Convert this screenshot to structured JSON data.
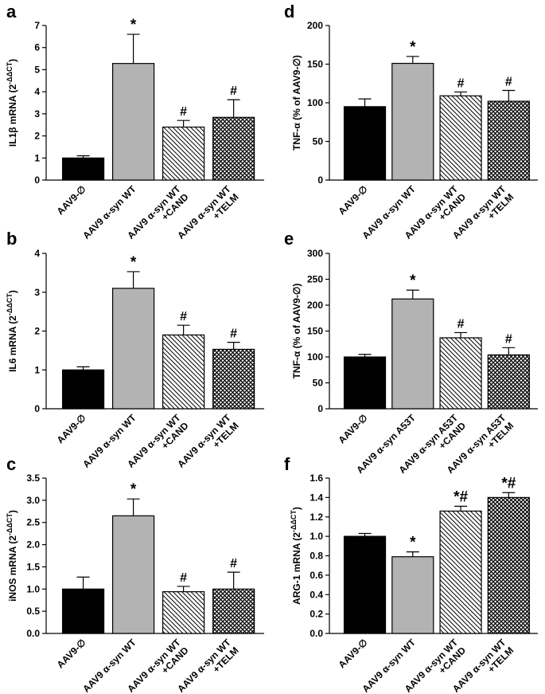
{
  "colors": {
    "black": "#000000",
    "gray": "#b3b3b3",
    "hatch_bg": "#ffffff",
    "cross_bg": "#ffffff"
  },
  "chart_data": [
    {
      "type": "bar",
      "panel": "a",
      "ylabel": "IL1β mRNA (2",
      "ylabel_sup": "-ΔΔCT",
      "ylabel_end": ")",
      "ylim": [
        0,
        7
      ],
      "yticks": [
        "0",
        "1",
        "2",
        "3",
        "4",
        "5",
        "6",
        "7"
      ],
      "categories": [
        [
          "AAV9-∅"
        ],
        [
          "AAV9 α-syn WT"
        ],
        [
          "AAV9 α-syn WT",
          "+CAND"
        ],
        [
          "AAV9 α-syn WT",
          "+TELM"
        ]
      ],
      "values": [
        1.0,
        5.28,
        2.4,
        2.84
      ],
      "errors": [
        0.1,
        1.32,
        0.3,
        0.8
      ],
      "fills": [
        "black",
        "gray",
        "hatch",
        "cross"
      ],
      "annotations": [
        "",
        "*",
        "#",
        "#"
      ]
    },
    {
      "type": "bar",
      "panel": "b",
      "ylabel": "IL6 mRNA (2",
      "ylabel_sup": "-ΔΔCT",
      "ylabel_end": ")",
      "ylim": [
        0,
        4
      ],
      "yticks": [
        "0",
        "1",
        "2",
        "3",
        "4"
      ],
      "categories": [
        [
          "AAV9-∅"
        ],
        [
          "AAV9 α-syn WT"
        ],
        [
          "AAV9 α-syn WT",
          "+CAND"
        ],
        [
          "AAV9 α-syn WT",
          "+TELM"
        ]
      ],
      "values": [
        1.0,
        3.1,
        1.9,
        1.53
      ],
      "errors": [
        0.08,
        0.43,
        0.25,
        0.18
      ],
      "fills": [
        "black",
        "gray",
        "hatch",
        "cross"
      ],
      "annotations": [
        "",
        "*",
        "#",
        "#"
      ]
    },
    {
      "type": "bar",
      "panel": "c",
      "ylabel": "iNOS mRNA (2",
      "ylabel_sup": "-ΔΔCT",
      "ylabel_end": ")",
      "ylim": [
        0,
        3.5
      ],
      "yticks": [
        "0.0",
        "0.5",
        "1.0",
        "1.5",
        "2.0",
        "2.5",
        "3.0",
        "3.5"
      ],
      "categories": [
        [
          "AAV9-∅"
        ],
        [
          "AAV9 α-syn WT"
        ],
        [
          "AAV9 α-syn WT",
          "+CAND"
        ],
        [
          "AAV9 α-syn WT",
          "+TELM"
        ]
      ],
      "values": [
        1.0,
        2.65,
        0.94,
        1.0
      ],
      "errors": [
        0.27,
        0.38,
        0.12,
        0.38
      ],
      "fills": [
        "black",
        "gray",
        "hatch",
        "cross"
      ],
      "annotations": [
        "",
        "*",
        "#",
        "#"
      ]
    },
    {
      "type": "bar",
      "panel": "d",
      "ylabel": "TNF-α (% of AAV9-∅)",
      "ylabel_sup": "",
      "ylabel_end": "",
      "ylim": [
        0,
        200
      ],
      "yticks": [
        "0",
        "50",
        "100",
        "150",
        "200"
      ],
      "categories": [
        [
          "AAV9-∅"
        ],
        [
          "AAV9 α-syn WT"
        ],
        [
          "AAV9 α-syn WT",
          "+CAND"
        ],
        [
          "AAV9 α-syn WT",
          "+TELM"
        ]
      ],
      "values": [
        95,
        151,
        109,
        102
      ],
      "errors": [
        10,
        9,
        5,
        14
      ],
      "fills": [
        "black",
        "gray",
        "hatch",
        "cross"
      ],
      "annotations": [
        "",
        "*",
        "#",
        "#"
      ]
    },
    {
      "type": "bar",
      "panel": "e",
      "ylabel": "TNF-α (% of AAV9-∅)",
      "ylabel_sup": "",
      "ylabel_end": "",
      "ylim": [
        0,
        300
      ],
      "yticks": [
        "0",
        "50",
        "100",
        "150",
        "200",
        "250",
        "300"
      ],
      "categories": [
        [
          "AAV9-∅"
        ],
        [
          "AAV9 α-syn A53T"
        ],
        [
          "AAV9 α-syn A53T",
          "+CAND"
        ],
        [
          "AAV9 α-syn A53T",
          "+TELM"
        ]
      ],
      "values": [
        100,
        212,
        137,
        104
      ],
      "errors": [
        5,
        17,
        10,
        14
      ],
      "fills": [
        "black",
        "gray",
        "hatch",
        "cross"
      ],
      "annotations": [
        "",
        "*",
        "#",
        "#"
      ]
    },
    {
      "type": "bar",
      "panel": "f",
      "ylabel": "ARG-1 mRNA (2",
      "ylabel_sup": "-ΔΔCT",
      "ylabel_end": ")",
      "ylim": [
        0,
        1.6
      ],
      "yticks": [
        "0.0",
        "0.2",
        "0.4",
        "0.6",
        "0.8",
        "1.0",
        "1.2",
        "1.4",
        "1.6"
      ],
      "categories": [
        [
          "AAV9-∅"
        ],
        [
          "AAV9 α-syn WT"
        ],
        [
          "AAV9 α-syn WT",
          "+CAND"
        ],
        [
          "AAV9 α-syn WT",
          "+TELM"
        ]
      ],
      "values": [
        1.0,
        0.79,
        1.26,
        1.4
      ],
      "errors": [
        0.03,
        0.05,
        0.05,
        0.05
      ],
      "fills": [
        "black",
        "gray",
        "hatch",
        "cross"
      ],
      "annotations": [
        "",
        "*",
        "*#",
        "*#"
      ]
    }
  ]
}
